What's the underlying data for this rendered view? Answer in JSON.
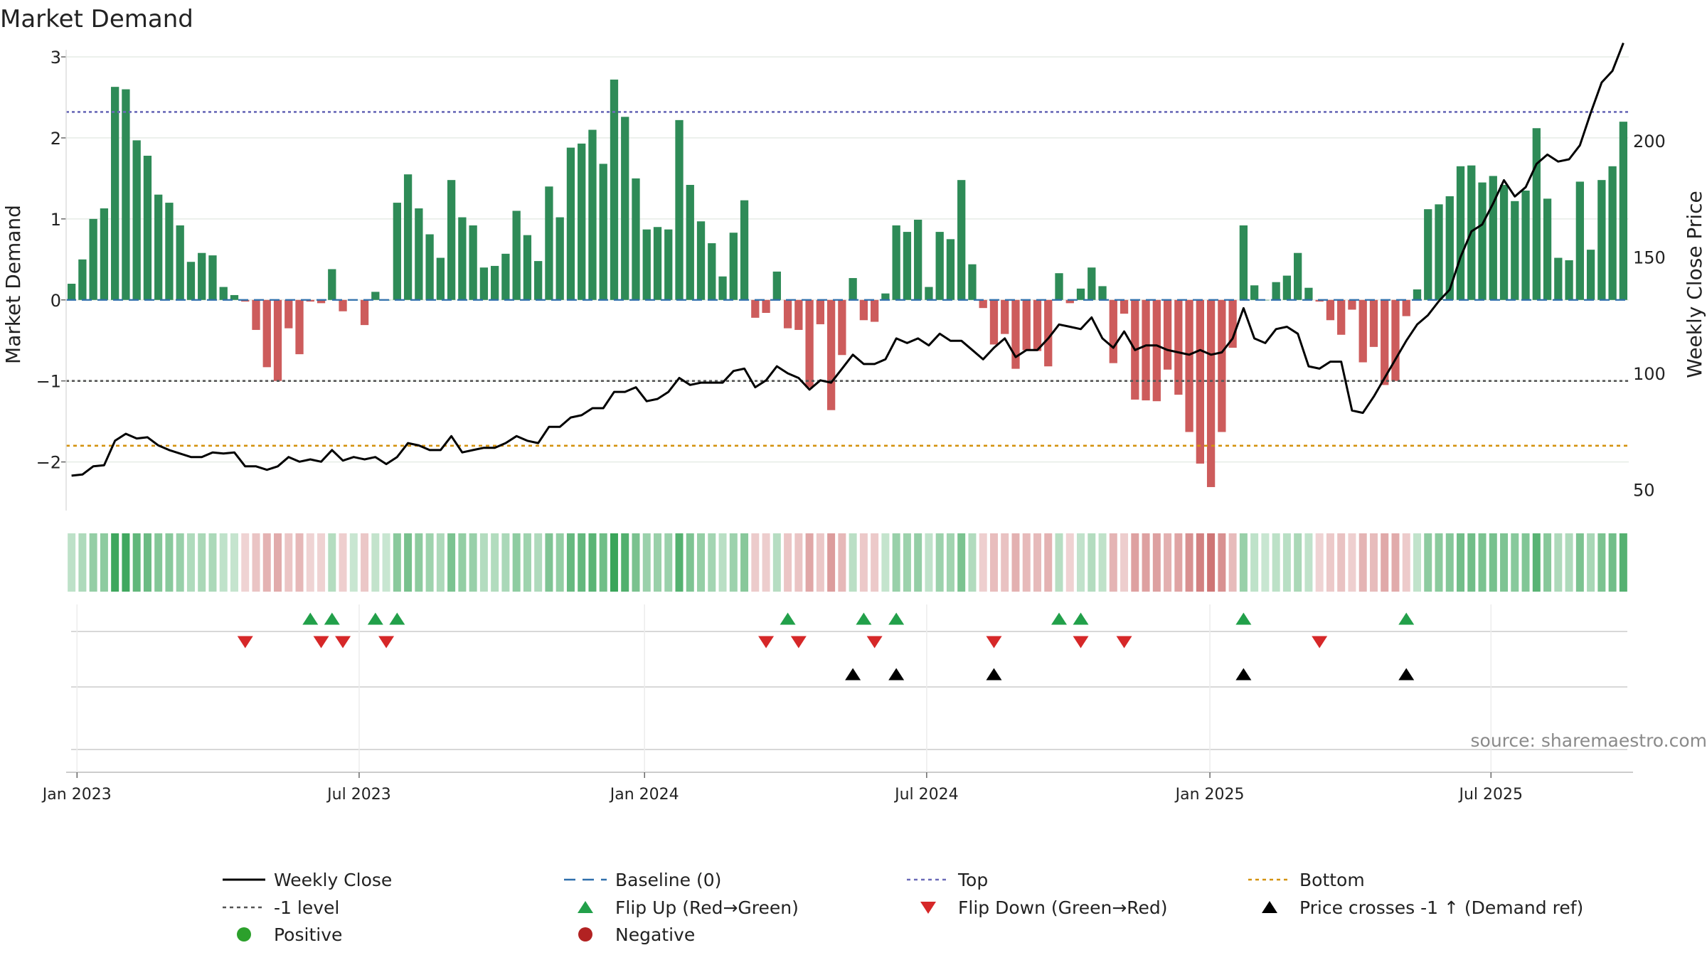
{
  "chart_data": {
    "type": "bar",
    "title": "Market Demand",
    "ylabel": "Market Demand",
    "y2label": "Weekly Close Price",
    "source": "source: sharemaestro.com",
    "ylim": [
      -2.6,
      3.0
    ],
    "y2lim": [
      41,
      236
    ],
    "yticks": [
      -2,
      -1,
      0,
      1,
      2,
      3
    ],
    "ytick_labels": [
      "−2",
      "−1",
      "0",
      "1",
      "2",
      "3"
    ],
    "y2ticks": [
      50,
      100,
      150,
      200
    ],
    "y2tick_labels": [
      "50",
      "100",
      "150",
      "200"
    ],
    "x_start": "2022-12-26",
    "x_end": "2025-10-13",
    "xticks": [
      {
        "label": "Jan 2023",
        "index": 1
      },
      {
        "label": "Jul 2023",
        "index": 27
      },
      {
        "label": "Jan 2024",
        "index": 53.3
      },
      {
        "label": "Jul 2024",
        "index": 79.3
      },
      {
        "label": "Jan 2025",
        "index": 105.4
      },
      {
        "label": "Jul 2025",
        "index": 131.3
      }
    ],
    "levels": {
      "top": 2.32,
      "bottom": -1.8,
      "minus_one": -1.0,
      "baseline": 0
    },
    "colors": {
      "positive": "#2e8b57",
      "negative": "#cd5c5c",
      "price": "#000000",
      "top": "#6a6ab8",
      "bottom": "#d4920f",
      "minus_one": "#555555",
      "baseline": "#2f6fab",
      "flip_up": "#22a04a",
      "flip_down": "#d62728",
      "cross": "#000000"
    },
    "demand": [
      0.2,
      0.5,
      1.0,
      1.13,
      2.63,
      2.6,
      1.97,
      1.78,
      1.3,
      1.2,
      0.92,
      0.47,
      0.58,
      0.55,
      0.16,
      0.06,
      -0.02,
      -0.37,
      -0.83,
      -1.0,
      -0.35,
      -0.67,
      -0.02,
      -0.04,
      0.38,
      -0.14,
      0.0,
      -0.31,
      0.1,
      0.0,
      1.2,
      1.55,
      1.13,
      0.81,
      0.52,
      1.48,
      1.02,
      0.92,
      0.4,
      0.42,
      0.57,
      1.1,
      0.8,
      0.48,
      1.4,
      1.02,
      1.88,
      1.93,
      2.1,
      1.68,
      2.72,
      2.26,
      1.5,
      0.87,
      0.9,
      0.87,
      2.22,
      1.42,
      0.97,
      0.7,
      0.29,
      0.83,
      1.23,
      -0.22,
      -0.16,
      0.35,
      -0.35,
      -0.37,
      -1.08,
      -0.3,
      -1.36,
      -0.68,
      0.27,
      -0.25,
      -0.27,
      0.08,
      0.92,
      0.84,
      0.99,
      0.16,
      0.84,
      0.75,
      1.48,
      0.44,
      -0.1,
      -0.55,
      -0.42,
      -0.85,
      -0.62,
      -0.63,
      -0.82,
      0.33,
      -0.04,
      0.14,
      0.4,
      0.17,
      -0.78,
      -0.17,
      -1.23,
      -1.24,
      -1.25,
      -0.86,
      -1.17,
      -1.63,
      -2.02,
      -2.31,
      -1.63,
      -0.59,
      0.92,
      0.18,
      0.0,
      0.22,
      0.3,
      0.58,
      0.15,
      -0.02,
      -0.25,
      -0.43,
      -0.12,
      -0.77,
      -0.58,
      -1.05,
      -1.0,
      -0.2,
      0.13,
      1.12,
      1.18,
      1.28,
      1.65,
      1.66,
      1.45,
      1.53,
      1.42,
      1.22,
      1.35,
      2.12,
      1.25,
      0.52,
      0.49,
      1.46,
      0.62,
      1.48,
      1.65,
      2.2
    ],
    "price": [
      56,
      56.5,
      60,
      60.5,
      71,
      74,
      72,
      72.5,
      69,
      67,
      65.5,
      64,
      64,
      66,
      65.5,
      66,
      60,
      60,
      58.5,
      60,
      64,
      62,
      63,
      62,
      67,
      62.5,
      64,
      63,
      64,
      61,
      64,
      70,
      69,
      67,
      67,
      73,
      66,
      67,
      68,
      68,
      70,
      73,
      71,
      70,
      77,
      77,
      81,
      82,
      85,
      85,
      92,
      92,
      94,
      88,
      89,
      92,
      98,
      95,
      96,
      96,
      96,
      101,
      102,
      94,
      97,
      103,
      100,
      98,
      93,
      97,
      96,
      102,
      108,
      104,
      104,
      106,
      115,
      113,
      115,
      112,
      117,
      114,
      114,
      110,
      106,
      111,
      115,
      107,
      110,
      110,
      115,
      121,
      120,
      119,
      124,
      115,
      111,
      118,
      110,
      112,
      112,
      110,
      109,
      108,
      110,
      108,
      109,
      115,
      128,
      115,
      113,
      119,
      120,
      117,
      103,
      102,
      105,
      105,
      84,
      83,
      90,
      98,
      106,
      114,
      121,
      125,
      131,
      136,
      150,
      161,
      164,
      173,
      183,
      176,
      180,
      190,
      194,
      191,
      192,
      198,
      212,
      225,
      230,
      242
    ],
    "heat_strip": "per-week colour tile, green for positive demand and red for negative, intensity proportional to magnitude",
    "flip_up_weeks": [
      22,
      24,
      28,
      30,
      66,
      73,
      76,
      91,
      93,
      108,
      123
    ],
    "flip_down_weeks": [
      16,
      23,
      25,
      29,
      64,
      67,
      74,
      85,
      93,
      97,
      115
    ],
    "price_cross_weeks": [
      72,
      76,
      85,
      108,
      123
    ],
    "legend": [
      {
        "label": "Weekly Close",
        "kind": "line-solid",
        "color_key": "price"
      },
      {
        "label": "Baseline (0)",
        "kind": "line-dash",
        "color_key": "baseline"
      },
      {
        "label": "Top",
        "kind": "line-dot",
        "color_key": "top"
      },
      {
        "label": "Bottom",
        "kind": "line-dot",
        "color_key": "bottom"
      },
      {
        "label": "-1 level",
        "kind": "line-dot",
        "color_key": "minus_one"
      },
      {
        "label": "Flip Up (Red→Green)",
        "kind": "tri-up",
        "color_key": "flip_up"
      },
      {
        "label": "Flip Down (Green→Red)",
        "kind": "tri-down",
        "color_key": "flip_down"
      },
      {
        "label": "Price crosses -1 ↑ (Demand ref)",
        "kind": "tri-up",
        "color_key": "cross"
      },
      {
        "label": "Positive",
        "kind": "dot",
        "color_key": "positive"
      },
      {
        "label": "Negative",
        "kind": "dot",
        "color_key": "negative"
      }
    ],
    "legend_position": "bottom"
  }
}
